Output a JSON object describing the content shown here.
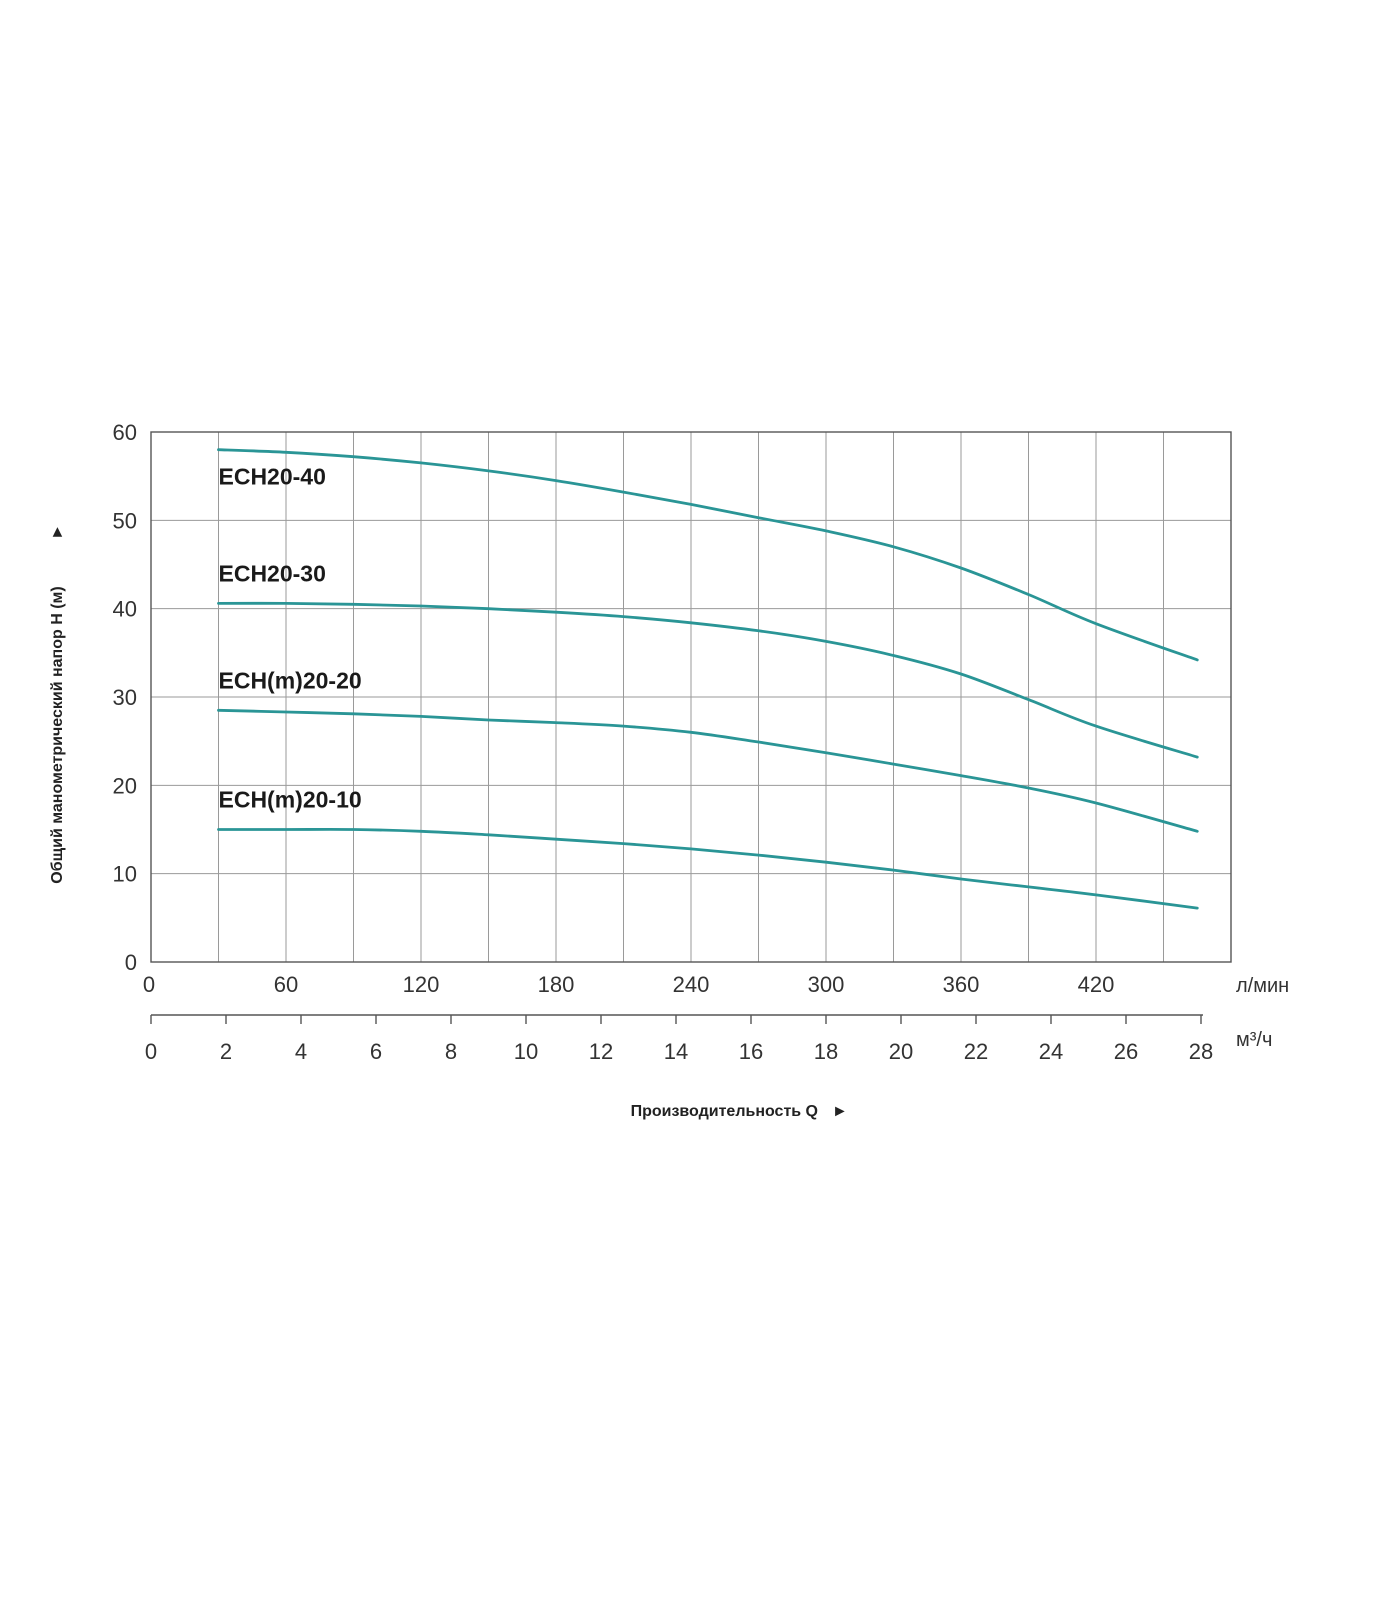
{
  "chart_data": {
    "type": "line",
    "ylabel": "Общий манометрический напор H (м)",
    "xlabel": "Производительность Q",
    "ylim": [
      0,
      60
    ],
    "yticks": [
      0,
      10,
      20,
      30,
      40,
      50,
      60
    ],
    "x_axis_lpm": {
      "unit": "л/мин",
      "range": [
        0,
        480
      ],
      "ticks": [
        0,
        60,
        120,
        180,
        240,
        300,
        360,
        420
      ]
    },
    "x_axis_m3h": {
      "unit": "м³/ч",
      "range": [
        0,
        28.8
      ],
      "ticks": [
        0,
        2,
        4,
        6,
        8,
        10,
        12,
        14,
        16,
        18,
        20,
        22,
        24,
        26,
        28
      ]
    },
    "grid": true,
    "arrow_glyph": "►",
    "colors": {
      "curve": "#2a9596",
      "grid": "#9a9a9a",
      "frame": "#555555"
    },
    "series": [
      {
        "name": "ECH20-40",
        "x": [
          30,
          60,
          90,
          120,
          150,
          180,
          210,
          240,
          270,
          300,
          330,
          360,
          390,
          420,
          465
        ],
        "y": [
          58.0,
          57.7,
          57.2,
          56.5,
          55.6,
          54.5,
          53.2,
          51.8,
          50.3,
          48.8,
          47.0,
          44.6,
          41.6,
          38.3,
          34.2
        ]
      },
      {
        "name": "ECH20-30",
        "x": [
          30,
          60,
          90,
          120,
          150,
          180,
          210,
          240,
          270,
          300,
          330,
          360,
          390,
          420,
          465
        ],
        "y": [
          40.6,
          40.6,
          40.5,
          40.3,
          40.0,
          39.6,
          39.1,
          38.4,
          37.5,
          36.3,
          34.7,
          32.6,
          29.7,
          26.7,
          23.2
        ]
      },
      {
        "name": "ECH(m)20-20",
        "x": [
          30,
          60,
          90,
          120,
          150,
          180,
          210,
          240,
          270,
          300,
          330,
          360,
          390,
          420,
          465
        ],
        "y": [
          28.5,
          28.3,
          28.1,
          27.8,
          27.4,
          27.1,
          26.7,
          26.0,
          24.9,
          23.7,
          22.4,
          21.1,
          19.7,
          18.0,
          14.8
        ]
      },
      {
        "name": "ECH(m)20-10",
        "x": [
          30,
          60,
          90,
          120,
          150,
          180,
          210,
          240,
          270,
          300,
          330,
          360,
          390,
          420,
          465
        ],
        "y": [
          15.0,
          15.0,
          15.0,
          14.8,
          14.4,
          13.9,
          13.4,
          12.8,
          12.1,
          11.3,
          10.4,
          9.4,
          8.5,
          7.6,
          6.1
        ]
      }
    ]
  }
}
